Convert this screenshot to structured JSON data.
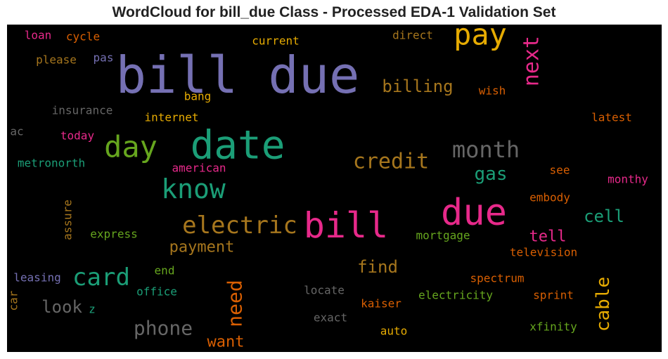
{
  "chart_data": {
    "type": "wordcloud",
    "title": "WordCloud for bill_due Class - Processed EDA-1 Validation Set",
    "background": "#000000",
    "words": [
      {
        "text": "bill due",
        "color": "#7570b3",
        "weight": 1.0
      },
      {
        "text": "date",
        "color": "#1b9e77",
        "weight": 0.8
      },
      {
        "text": "bill",
        "color": "#e7298a",
        "weight": 0.8
      },
      {
        "text": "due",
        "color": "#e7298a",
        "weight": 0.8
      },
      {
        "text": "pay",
        "color": "#e6ab02",
        "weight": 0.6
      },
      {
        "text": "know",
        "color": "#1b9e77",
        "weight": 0.5
      },
      {
        "text": "electric",
        "color": "#a6761d",
        "weight": 0.5
      },
      {
        "text": "day",
        "color": "#66a61e",
        "weight": 0.5
      },
      {
        "text": "card",
        "color": "#1b9e77",
        "weight": 0.5
      },
      {
        "text": "month",
        "color": "#666666",
        "weight": 0.45
      },
      {
        "text": "next",
        "color": "#e7298a",
        "weight": 0.4
      },
      {
        "text": "credit",
        "color": "#a6761d",
        "weight": 0.4
      },
      {
        "text": "need",
        "color": "#d95f02",
        "weight": 0.4
      },
      {
        "text": "cable",
        "color": "#e6ab02",
        "weight": 0.4
      },
      {
        "text": "phone",
        "color": "#666666",
        "weight": 0.4
      },
      {
        "text": "gas",
        "color": "#1b9e77",
        "weight": 0.35
      },
      {
        "text": "cell",
        "color": "#1b9e77",
        "weight": 0.35
      },
      {
        "text": "billing",
        "color": "#a6761d",
        "weight": 0.3
      },
      {
        "text": "payment",
        "color": "#a6761d",
        "weight": 0.3
      },
      {
        "text": "tell",
        "color": "#e7298a",
        "weight": 0.3
      },
      {
        "text": "find",
        "color": "#a6761d",
        "weight": 0.3
      },
      {
        "text": "look",
        "color": "#666666",
        "weight": 0.3
      },
      {
        "text": "want",
        "color": "#d95f02",
        "weight": 0.3
      },
      {
        "text": "loan",
        "color": "#e7298a",
        "weight": 0.15
      },
      {
        "text": "cycle",
        "color": "#d95f02",
        "weight": 0.15
      },
      {
        "text": "please",
        "color": "#a6761d",
        "weight": 0.15
      },
      {
        "text": "pas",
        "color": "#7570b3",
        "weight": 0.15
      },
      {
        "text": "current",
        "color": "#e6ab02",
        "weight": 0.15
      },
      {
        "text": "direct",
        "color": "#a6761d",
        "weight": 0.15
      },
      {
        "text": "bang",
        "color": "#e6ab02",
        "weight": 0.15
      },
      {
        "text": "wish",
        "color": "#d95f02",
        "weight": 0.15
      },
      {
        "text": "insurance",
        "color": "#666666",
        "weight": 0.15
      },
      {
        "text": "internet",
        "color": "#e6ab02",
        "weight": 0.15
      },
      {
        "text": "latest",
        "color": "#d95f02",
        "weight": 0.15
      },
      {
        "text": "ac",
        "color": "#666666",
        "weight": 0.15
      },
      {
        "text": "today",
        "color": "#e7298a",
        "weight": 0.15
      },
      {
        "text": "metronorth",
        "color": "#1b9e77",
        "weight": 0.15
      },
      {
        "text": "american",
        "color": "#e7298a",
        "weight": 0.15
      },
      {
        "text": "see",
        "color": "#d95f02",
        "weight": 0.15
      },
      {
        "text": "monthy",
        "color": "#e7298a",
        "weight": 0.15
      },
      {
        "text": "assure",
        "color": "#a6761d",
        "weight": 0.15
      },
      {
        "text": "embody",
        "color": "#d95f02",
        "weight": 0.15
      },
      {
        "text": "express",
        "color": "#66a61e",
        "weight": 0.15
      },
      {
        "text": "mortgage",
        "color": "#66a61e",
        "weight": 0.15
      },
      {
        "text": "television",
        "color": "#d95f02",
        "weight": 0.15
      },
      {
        "text": "leasing",
        "color": "#7570b3",
        "weight": 0.15
      },
      {
        "text": "end",
        "color": "#66a61e",
        "weight": 0.15
      },
      {
        "text": "office",
        "color": "#1b9e77",
        "weight": 0.15
      },
      {
        "text": "car",
        "color": "#a6761d",
        "weight": 0.15
      },
      {
        "text": "z",
        "color": "#1b9e77",
        "weight": 0.15
      },
      {
        "text": "locate",
        "color": "#666666",
        "weight": 0.15
      },
      {
        "text": "spectrum",
        "color": "#d95f02",
        "weight": 0.15
      },
      {
        "text": "sprint",
        "color": "#d95f02",
        "weight": 0.15
      },
      {
        "text": "electricity",
        "color": "#66a61e",
        "weight": 0.15
      },
      {
        "text": "kaiser",
        "color": "#d95f02",
        "weight": 0.15
      },
      {
        "text": "exact",
        "color": "#666666",
        "weight": 0.15
      },
      {
        "text": "auto",
        "color": "#e6ab02",
        "weight": 0.15
      },
      {
        "text": "xfinity",
        "color": "#66a61e",
        "weight": 0.15
      }
    ]
  }
}
